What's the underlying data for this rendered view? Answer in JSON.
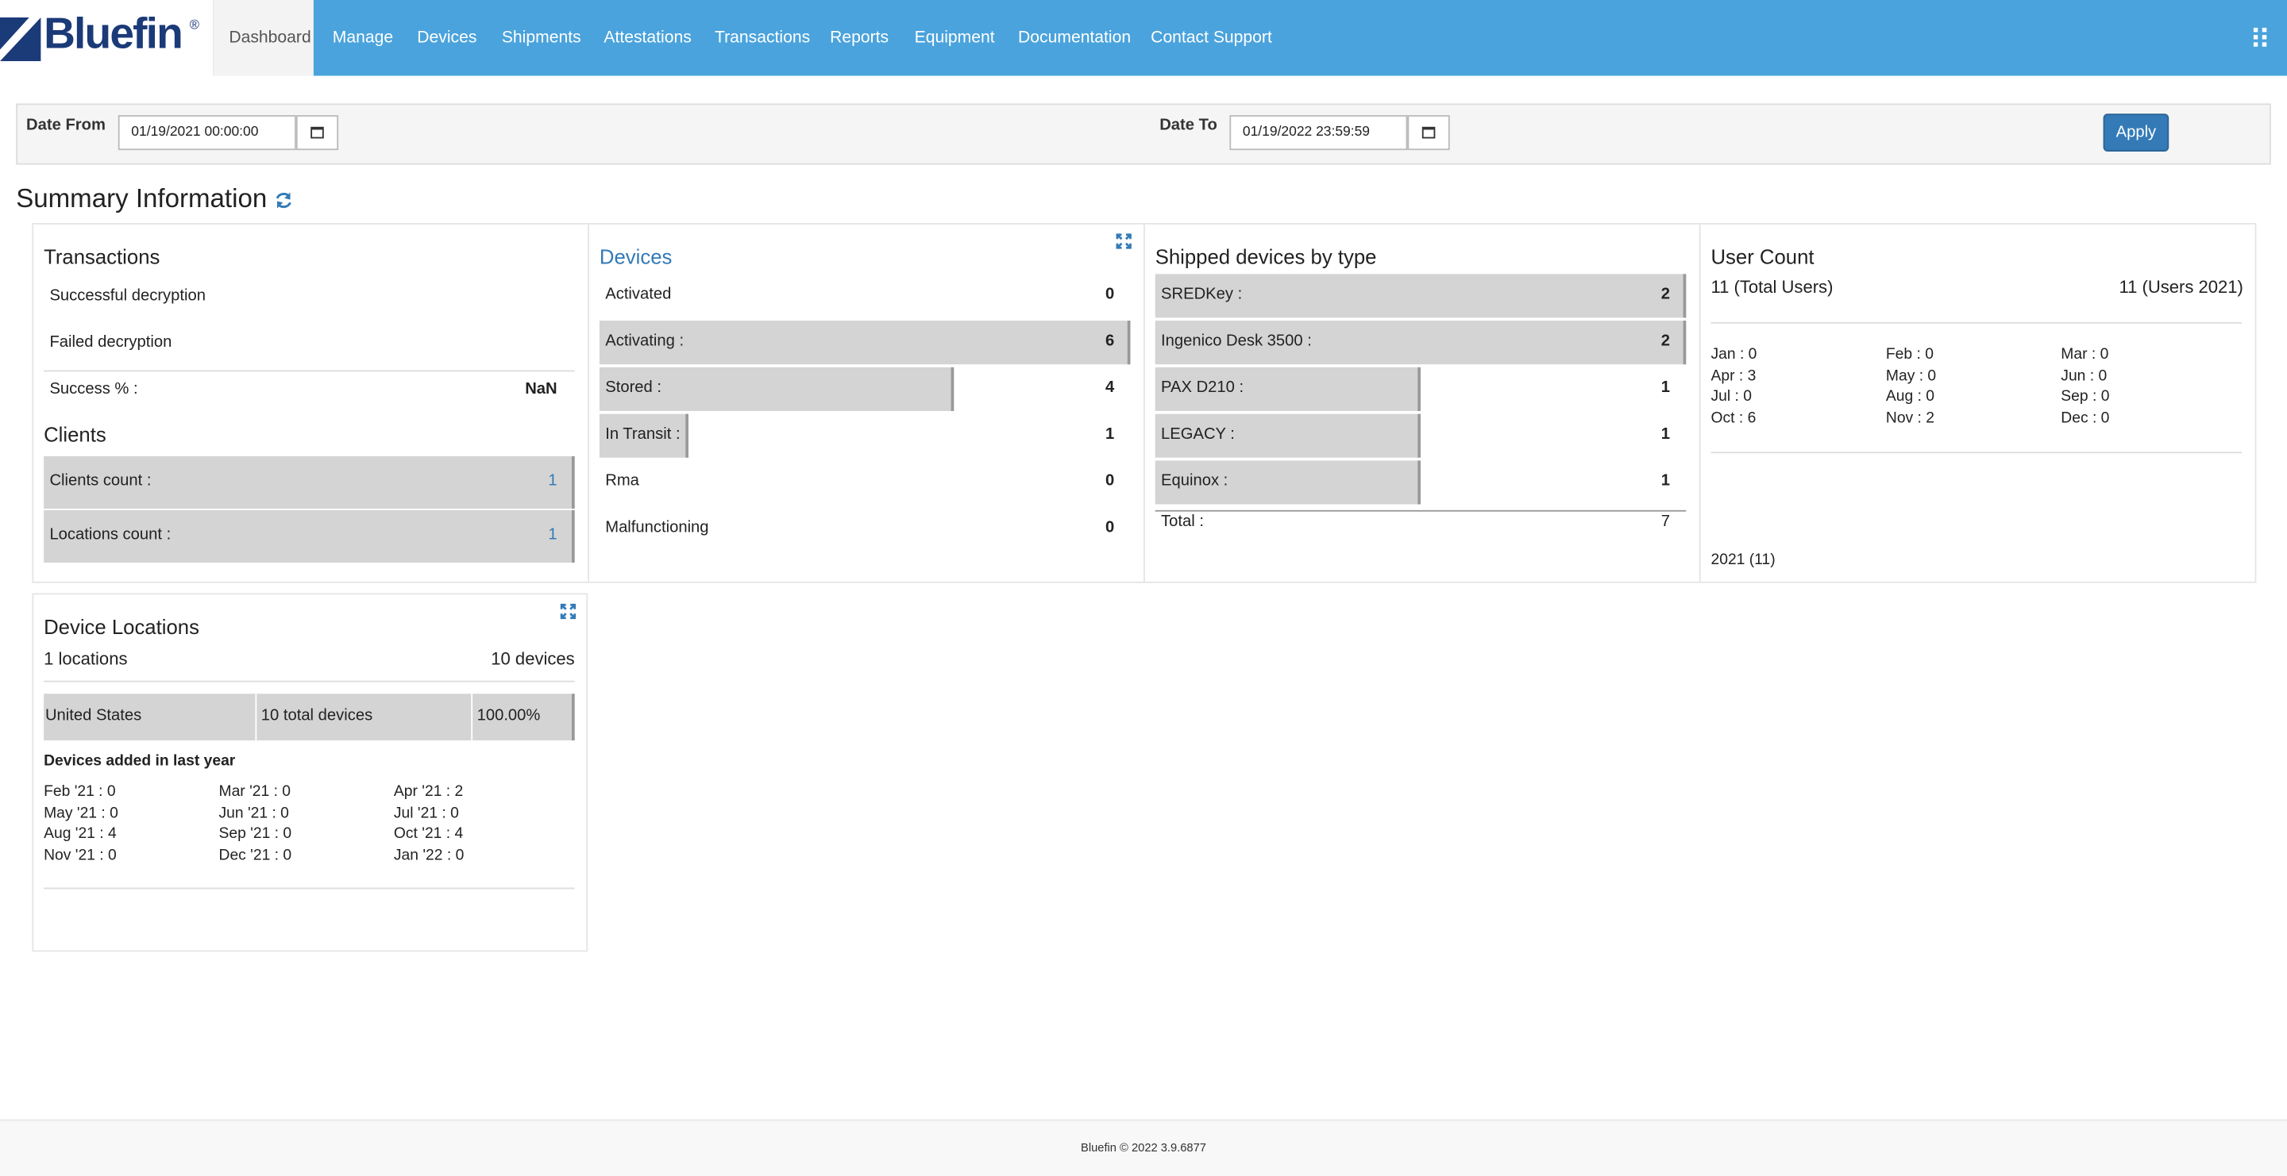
{
  "nav": {
    "brand": "Bluefin",
    "brand_mark": "®",
    "items": [
      "Dashboard",
      "Manage",
      "Devices",
      "Shipments",
      "Attestations",
      "Transactions",
      "Reports",
      "Equipment",
      "Documentation",
      "Contact Support"
    ]
  },
  "filters": {
    "date_from_label": "Date From",
    "date_from": "01/19/2021 00:00:00",
    "date_to_label": "Date To",
    "date_to": "01/19/2022 23:59:59",
    "apply": "Apply"
  },
  "summary_title": "Summary Information",
  "transactions": {
    "title": "Transactions",
    "rows": [
      "Successful decryption",
      "Failed decryption"
    ],
    "success_label": "Success % :",
    "success_value": "NaN"
  },
  "clients": {
    "title": "Clients",
    "rows": [
      {
        "label": "Clients count :",
        "value": 1
      },
      {
        "label": "Locations count :",
        "value": 1
      }
    ]
  },
  "devices": {
    "title": "Devices",
    "rows": [
      {
        "label": "Activated",
        "value": 0
      },
      {
        "label": "Activating :",
        "value": 6
      },
      {
        "label": "Stored :",
        "value": 4
      },
      {
        "label": "In Transit :",
        "value": 1
      },
      {
        "label": "Rma",
        "value": 0
      },
      {
        "label": "Malfunctioning",
        "value": 0
      }
    ]
  },
  "shipped": {
    "title": "Shipped devices by type",
    "rows": [
      {
        "label": "SREDKey :",
        "value": 2
      },
      {
        "label": "Ingenico Desk 3500 :",
        "value": 2
      },
      {
        "label": "PAX D210 :",
        "value": 1
      },
      {
        "label": "LEGACY :",
        "value": 1
      },
      {
        "label": "Equinox :",
        "value": 1
      }
    ],
    "total_label": "Total :",
    "total": 7
  },
  "user_count": {
    "title": "User Count",
    "total": "11 (Total Users)",
    "year_total": "11 (Users 2021)",
    "months": [
      "Jan : 0",
      "Feb : 0",
      "Mar : 0",
      "Apr : 3",
      "May : 0",
      "Jun : 0",
      "Jul : 0",
      "Aug : 0",
      "Sep : 0",
      "Oct : 6",
      "Nov : 2",
      "Dec : 0"
    ],
    "footer": "2021 (11)"
  },
  "device_locations": {
    "title": "Device Locations",
    "locations": "1 locations",
    "devices": "10 devices",
    "rows": [
      {
        "country": "United States",
        "devices": "10 total devices",
        "share": "100.00%"
      }
    ],
    "added_title": "Devices added in last year",
    "months": [
      "Feb '21 : 0",
      "Mar '21 : 0",
      "Apr '21 : 2",
      "May '21 : 0",
      "Jun '21 : 0",
      "Jul '21 : 0",
      "Aug '21 : 4",
      "Sep '21 : 0",
      "Oct '21 : 4",
      "Nov '21 : 0",
      "Dec '21 : 0",
      "Jan '22 : 0"
    ]
  },
  "footer": "Bluefin © 2022 3.9.6877"
}
